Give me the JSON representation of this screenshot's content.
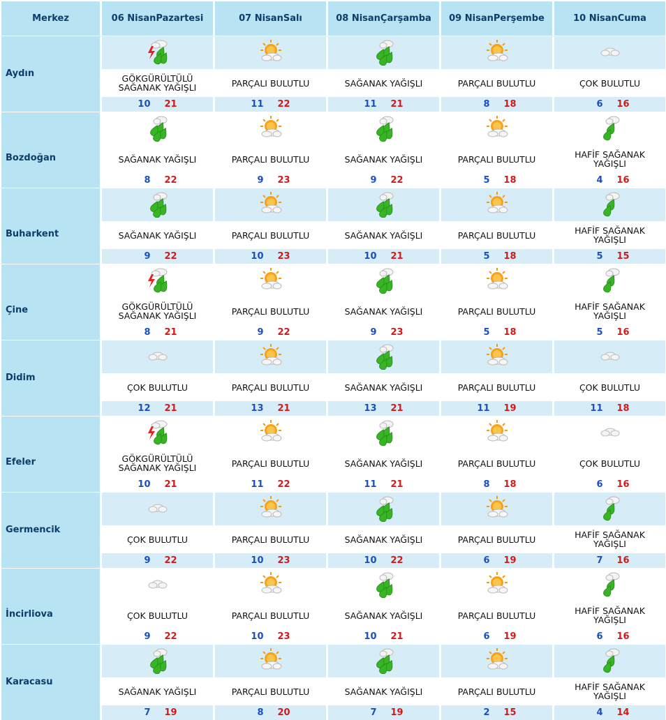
{
  "header": {
    "merkez": "Merkez",
    "days": [
      {
        "date": "06 Nisan",
        "day": "Pazartesi"
      },
      {
        "date": "07 Nisan",
        "day": "Salı"
      },
      {
        "date": "08 Nisan",
        "day": "Çarşamba"
      },
      {
        "date": "09 Nisan",
        "day": "Perşembe"
      },
      {
        "date": "10 Nisan",
        "day": "Cuma"
      }
    ]
  },
  "rows": [
    {
      "city": "Aydın",
      "cells": [
        {
          "icon": "thunder-rain-icon",
          "cond": "GÖKGÜRÜLTÜLÜ SAĞANAK YAĞIŞLI",
          "min": "10",
          "max": "21"
        },
        {
          "icon": "partly-cloudy-icon",
          "cond": "PARÇALI BULUTLU",
          "min": "11",
          "max": "22"
        },
        {
          "icon": "shower-icon",
          "cond": "SAĞANAK YAĞIŞLI",
          "min": "11",
          "max": "21"
        },
        {
          "icon": "partly-cloudy-icon",
          "cond": "PARÇALI BULUTLU",
          "min": "8",
          "max": "18"
        },
        {
          "icon": "cloudy-icon",
          "cond": "ÇOK BULUTLU",
          "min": "6",
          "max": "16"
        }
      ]
    },
    {
      "city": "Bozdoğan",
      "cells": [
        {
          "icon": "shower-icon",
          "cond": "SAĞANAK YAĞIŞLI",
          "min": "8",
          "max": "22"
        },
        {
          "icon": "partly-cloudy-icon",
          "cond": "PARÇALI BULUTLU",
          "min": "9",
          "max": "23"
        },
        {
          "icon": "shower-icon",
          "cond": "SAĞANAK YAĞIŞLI",
          "min": "9",
          "max": "22"
        },
        {
          "icon": "partly-cloudy-icon",
          "cond": "PARÇALI BULUTLU",
          "min": "5",
          "max": "18"
        },
        {
          "icon": "light-shower-icon",
          "cond": "HAFİF SAĞANAK YAĞIŞLI",
          "min": "4",
          "max": "16"
        }
      ]
    },
    {
      "city": "Buharkent",
      "cells": [
        {
          "icon": "shower-icon",
          "cond": "SAĞANAK YAĞIŞLI",
          "min": "9",
          "max": "22"
        },
        {
          "icon": "partly-cloudy-icon",
          "cond": "PARÇALI BULUTLU",
          "min": "10",
          "max": "23"
        },
        {
          "icon": "shower-icon",
          "cond": "SAĞANAK YAĞIŞLI",
          "min": "10",
          "max": "21"
        },
        {
          "icon": "partly-cloudy-icon",
          "cond": "PARÇALI BULUTLU",
          "min": "5",
          "max": "18"
        },
        {
          "icon": "light-shower-icon",
          "cond": "HAFİF SAĞANAK YAĞIŞLI",
          "min": "5",
          "max": "15"
        }
      ]
    },
    {
      "city": "Çine",
      "cells": [
        {
          "icon": "thunder-rain-icon",
          "cond": "GÖKGÜRÜLTÜLÜ SAĞANAK YAĞIŞLI",
          "min": "8",
          "max": "21"
        },
        {
          "icon": "partly-cloudy-icon",
          "cond": "PARÇALI BULUTLU",
          "min": "9",
          "max": "22"
        },
        {
          "icon": "shower-icon",
          "cond": "SAĞANAK YAĞIŞLI",
          "min": "9",
          "max": "23"
        },
        {
          "icon": "partly-cloudy-icon",
          "cond": "PARÇALI BULUTLU",
          "min": "5",
          "max": "18"
        },
        {
          "icon": "light-shower-icon",
          "cond": "HAFİF SAĞANAK YAĞIŞLI",
          "min": "5",
          "max": "16"
        }
      ]
    },
    {
      "city": "Didim",
      "cells": [
        {
          "icon": "cloudy-icon",
          "cond": "ÇOK BULUTLU",
          "min": "12",
          "max": "21"
        },
        {
          "icon": "partly-cloudy-icon",
          "cond": "PARÇALI BULUTLU",
          "min": "13",
          "max": "21"
        },
        {
          "icon": "shower-icon",
          "cond": "SAĞANAK YAĞIŞLI",
          "min": "13",
          "max": "21"
        },
        {
          "icon": "partly-cloudy-icon",
          "cond": "PARÇALI BULUTLU",
          "min": "11",
          "max": "19"
        },
        {
          "icon": "cloudy-icon",
          "cond": "ÇOK BULUTLU",
          "min": "11",
          "max": "18"
        }
      ]
    },
    {
      "city": "Efeler",
      "cells": [
        {
          "icon": "thunder-rain-icon",
          "cond": "GÖKGÜRÜLTÜLÜ SAĞANAK YAĞIŞLI",
          "min": "10",
          "max": "21"
        },
        {
          "icon": "partly-cloudy-icon",
          "cond": "PARÇALI BULUTLU",
          "min": "11",
          "max": "22"
        },
        {
          "icon": "shower-icon",
          "cond": "SAĞANAK YAĞIŞLI",
          "min": "11",
          "max": "21"
        },
        {
          "icon": "partly-cloudy-icon",
          "cond": "PARÇALI BULUTLU",
          "min": "8",
          "max": "18"
        },
        {
          "icon": "cloudy-icon",
          "cond": "ÇOK BULUTLU",
          "min": "6",
          "max": "16"
        }
      ]
    },
    {
      "city": "Germencik",
      "cells": [
        {
          "icon": "cloudy-icon",
          "cond": "ÇOK BULUTLU",
          "min": "9",
          "max": "22"
        },
        {
          "icon": "partly-cloudy-icon",
          "cond": "PARÇALI BULUTLU",
          "min": "10",
          "max": "23"
        },
        {
          "icon": "shower-icon",
          "cond": "SAĞANAK YAĞIŞLI",
          "min": "10",
          "max": "22"
        },
        {
          "icon": "partly-cloudy-icon",
          "cond": "PARÇALI BULUTLU",
          "min": "6",
          "max": "19"
        },
        {
          "icon": "light-shower-icon",
          "cond": "HAFİF SAĞANAK YAĞIŞLI",
          "min": "7",
          "max": "16"
        }
      ]
    },
    {
      "city": "İncirliova",
      "cells": [
        {
          "icon": "cloudy-icon",
          "cond": "ÇOK BULUTLU",
          "min": "9",
          "max": "22"
        },
        {
          "icon": "partly-cloudy-icon",
          "cond": "PARÇALI BULUTLU",
          "min": "10",
          "max": "23"
        },
        {
          "icon": "shower-icon",
          "cond": "SAĞANAK YAĞIŞLI",
          "min": "10",
          "max": "21"
        },
        {
          "icon": "partly-cloudy-icon",
          "cond": "PARÇALI BULUTLU",
          "min": "6",
          "max": "19"
        },
        {
          "icon": "light-shower-icon",
          "cond": "HAFİF SAĞANAK YAĞIŞLI",
          "min": "6",
          "max": "16"
        }
      ]
    },
    {
      "city": "Karacasu",
      "cells": [
        {
          "icon": "shower-icon",
          "cond": "SAĞANAK YAĞIŞLI",
          "min": "7",
          "max": "19"
        },
        {
          "icon": "partly-cloudy-icon",
          "cond": "PARÇALI BULUTLU",
          "min": "8",
          "max": "20"
        },
        {
          "icon": "shower-icon",
          "cond": "SAĞANAK YAĞIŞLI",
          "min": "7",
          "max": "19"
        },
        {
          "icon": "partly-cloudy-icon",
          "cond": "PARÇALI BULUTLU",
          "min": "2",
          "max": "15"
        },
        {
          "icon": "light-shower-icon",
          "cond": "HAFİF SAĞANAK YAĞIŞLI",
          "min": "4",
          "max": "14"
        }
      ]
    }
  ],
  "colors": {
    "header_bg": "#b7e3f3",
    "header_text": "#0d3d6b",
    "shade_band": "#d6edf7",
    "min_temp": "#1a4fc2",
    "max_temp": "#d21a1a"
  }
}
